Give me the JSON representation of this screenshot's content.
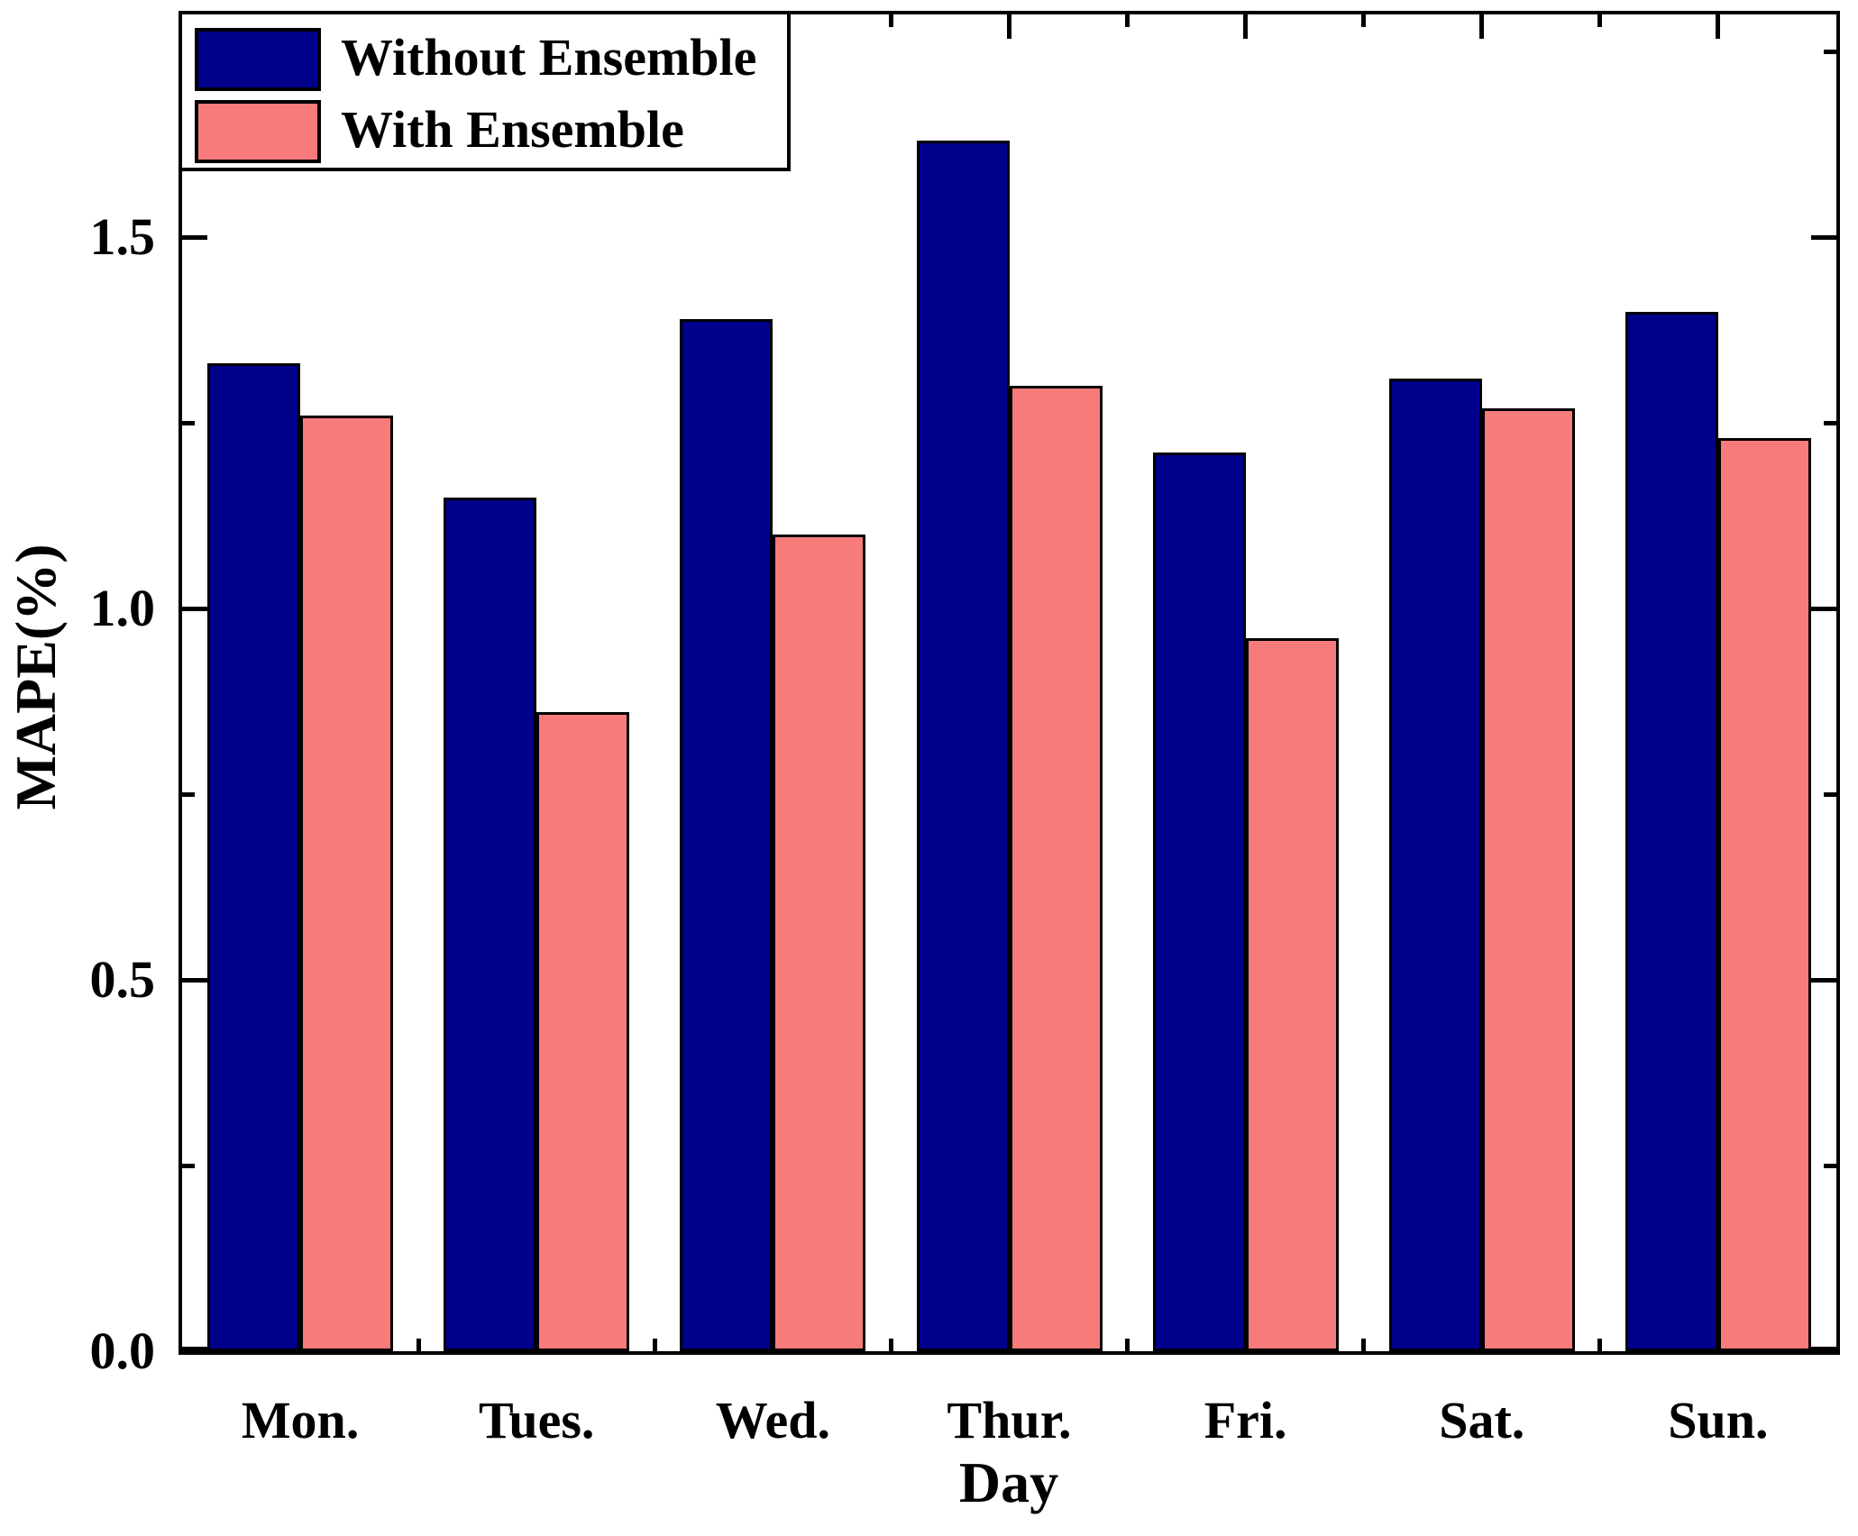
{
  "chart_data": {
    "type": "bar",
    "title": "",
    "xlabel": "Day",
    "ylabel": "MAPE(%)",
    "categories": [
      "Mon.",
      "Tues.",
      "Wed.",
      "Thur.",
      "Fri.",
      "Sat.",
      "Sun."
    ],
    "series": [
      {
        "name": "Without Ensemble",
        "color": "#00008B",
        "values": [
          1.33,
          1.15,
          1.39,
          1.63,
          1.21,
          1.31,
          1.4
        ]
      },
      {
        "name": "With Ensemble",
        "color": "#F87B7B",
        "values": [
          1.26,
          0.86,
          1.1,
          1.3,
          0.96,
          1.27,
          1.23
        ]
      }
    ],
    "ylim": [
      0,
      1.8
    ],
    "yticks_major": [
      0.0,
      0.5,
      1.0,
      1.5
    ],
    "ytick_labels": [
      "0.0",
      "0.5",
      "1.0",
      "1.5"
    ],
    "yticks_minor": [
      0.25,
      0.75,
      1.25,
      1.75
    ],
    "grid": false,
    "legend_position": "top-left",
    "bar_edge_color": "#000000",
    "axis_color": "#000000"
  }
}
